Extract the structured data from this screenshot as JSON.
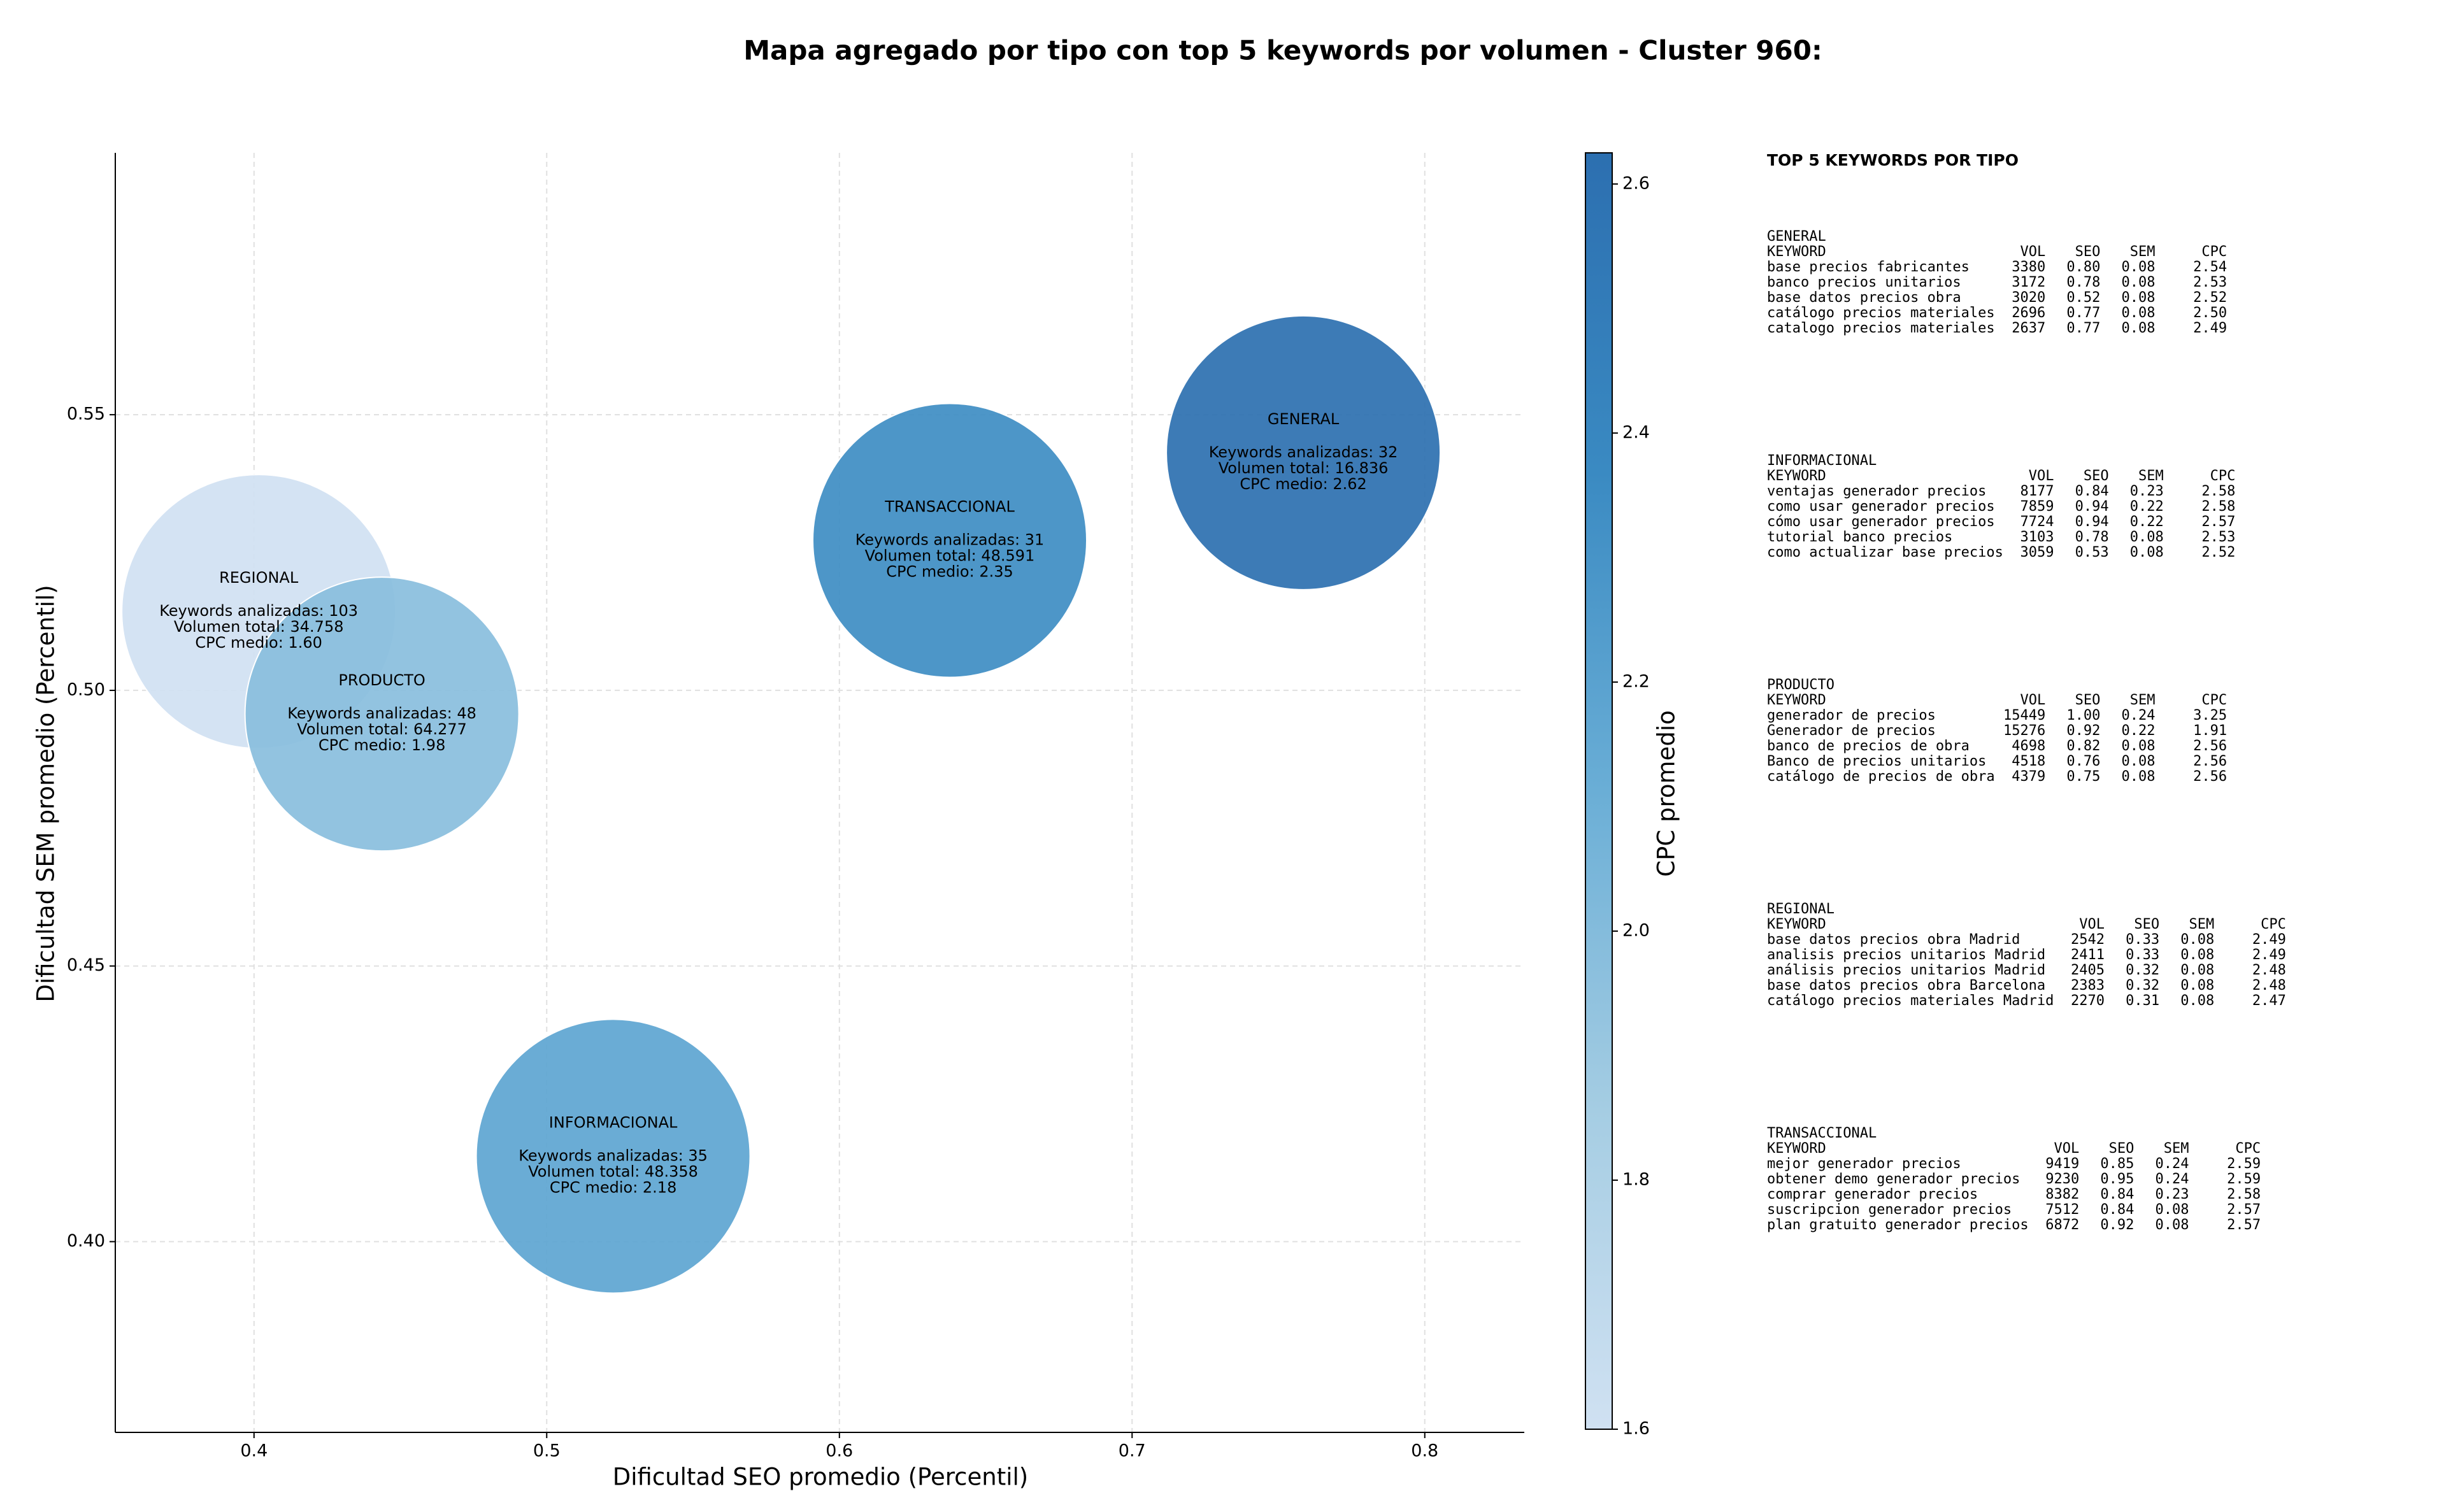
{
  "chart_data": {
    "type": "bubble",
    "title": "Mapa agregado por tipo con top 5 keywords por volumen - Cluster 960:",
    "xlabel": "Dificultad SEO promedio (Percentil)",
    "ylabel": "Dificultad SEM promedio (Percentil)",
    "xlim": [
      0.3526,
      0.834
    ],
    "ylim": [
      0.3654,
      0.5975
    ],
    "xticks": [
      0.4,
      0.5,
      0.6,
      0.7,
      0.8
    ],
    "yticks": [
      {
        "value": 0.4,
        "label": "0.40"
      },
      0.45,
      {
        "value": 0.5,
        "label": "0.50"
      },
      0.55
    ],
    "grid": true,
    "x": [
      0.4016,
      0.4437,
      0.5227,
      0.6377,
      0.7585
    ],
    "y": [
      0.5143,
      0.4957,
      0.4155,
      0.5272,
      0.5431
    ],
    "cpc": [
      1.6,
      1.98,
      2.18,
      2.35,
      2.62
    ],
    "annotations": [
      [
        "REGIONAL",
        "Keywords analizadas: 103",
        "Volumen total: 34.758",
        "CPC medio: 1.60"
      ],
      [
        "PRODUCTO",
        "Keywords analizadas: 48",
        "Volumen total: 64.277",
        "CPC medio: 1.98"
      ],
      [
        "INFORMACIONAL",
        "Keywords analizadas: 35",
        "Volumen total: 48.358",
        "CPC medio: 2.18"
      ],
      [
        "TRANSACCIONAL",
        "Keywords analizadas: 31",
        "Volumen total: 48.591",
        "CPC medio: 2.35"
      ],
      [
        "GENERAL",
        "Keywords analizadas: 32",
        "Volumen total: 16.836",
        "CPC medio: 2.62"
      ]
    ],
    "colorbar": {
      "label": "CPC promedio",
      "lim": [
        1.6,
        2.625
      ],
      "ticks": [
        1.6,
        1.8,
        {
          "value": 2,
          "label": "2.0"
        },
        2.2,
        2.4,
        2.6
      ],
      "colormap": [
        "#d0e1f2",
        "#a5cde3",
        "#6aaed6",
        "#3a8ac2",
        "#2c6fb0"
      ]
    }
  },
  "side_panel": {
    "title": "TOP 5 KEYWORDS POR TIPO",
    "columns": [
      "KEYWORD",
      "VOL",
      "SEO",
      "SEM",
      "CPC"
    ],
    "tables": [
      {
        "name": "GENERAL",
        "rows": [
          [
            "base precios fabricantes",
            "3380",
            "0.80",
            "0.08",
            "2.54"
          ],
          [
            "banco precios unitarios",
            "3172",
            "0.78",
            "0.08",
            "2.53"
          ],
          [
            "base datos precios obra",
            "3020",
            "0.52",
            "0.08",
            "2.52"
          ],
          [
            "catálogo precios materiales",
            "2696",
            "0.77",
            "0.08",
            "2.50"
          ],
          [
            "catalogo precios materiales",
            "2637",
            "0.77",
            "0.08",
            "2.49"
          ]
        ]
      },
      {
        "name": "INFORMACIONAL",
        "rows": [
          [
            "ventajas generador precios",
            "8177",
            "0.84",
            "0.23",
            "2.58"
          ],
          [
            "como usar generador precios",
            "7859",
            "0.94",
            "0.22",
            "2.58"
          ],
          [
            "cómo usar generador precios",
            "7724",
            "0.94",
            "0.22",
            "2.57"
          ],
          [
            "tutorial banco precios",
            "3103",
            "0.78",
            "0.08",
            "2.53"
          ],
          [
            "como actualizar base precios",
            "3059",
            "0.53",
            "0.08",
            "2.52"
          ]
        ]
      },
      {
        "name": "PRODUCTO",
        "rows": [
          [
            "generador de precios",
            "15449",
            "1.00",
            "0.24",
            "3.25"
          ],
          [
            "Generador de precios",
            "15276",
            "0.92",
            "0.22",
            "1.91"
          ],
          [
            "banco de precios de obra",
            "4698",
            "0.82",
            "0.08",
            "2.56"
          ],
          [
            "Banco de precios unitarios",
            "4518",
            "0.76",
            "0.08",
            "2.56"
          ],
          [
            "catálogo de precios de obra",
            "4379",
            "0.75",
            "0.08",
            "2.56"
          ]
        ]
      },
      {
        "name": "REGIONAL",
        "rows": [
          [
            "base datos precios obra Madrid",
            "2542",
            "0.33",
            "0.08",
            "2.49"
          ],
          [
            "analisis precios unitarios Madrid",
            "2411",
            "0.33",
            "0.08",
            "2.49"
          ],
          [
            "análisis precios unitarios Madrid",
            "2405",
            "0.32",
            "0.08",
            "2.48"
          ],
          [
            "base datos precios obra Barcelona",
            "2383",
            "0.32",
            "0.08",
            "2.48"
          ],
          [
            "catálogo precios materiales Madrid",
            "2270",
            "0.31",
            "0.08",
            "2.47"
          ]
        ]
      },
      {
        "name": "TRANSACCIONAL",
        "rows": [
          [
            "mejor generador precios",
            "9419",
            "0.85",
            "0.24",
            "2.59"
          ],
          [
            "obtener demo generador precios",
            "9230",
            "0.95",
            "0.24",
            "2.59"
          ],
          [
            "comprar generador precios",
            "8382",
            "0.84",
            "0.23",
            "2.58"
          ],
          [
            "suscripcion generador precios",
            "7512",
            "0.84",
            "0.08",
            "2.57"
          ],
          [
            "plan gratuito generador precios",
            "6872",
            "0.92",
            "0.08",
            "2.57"
          ]
        ]
      }
    ]
  }
}
